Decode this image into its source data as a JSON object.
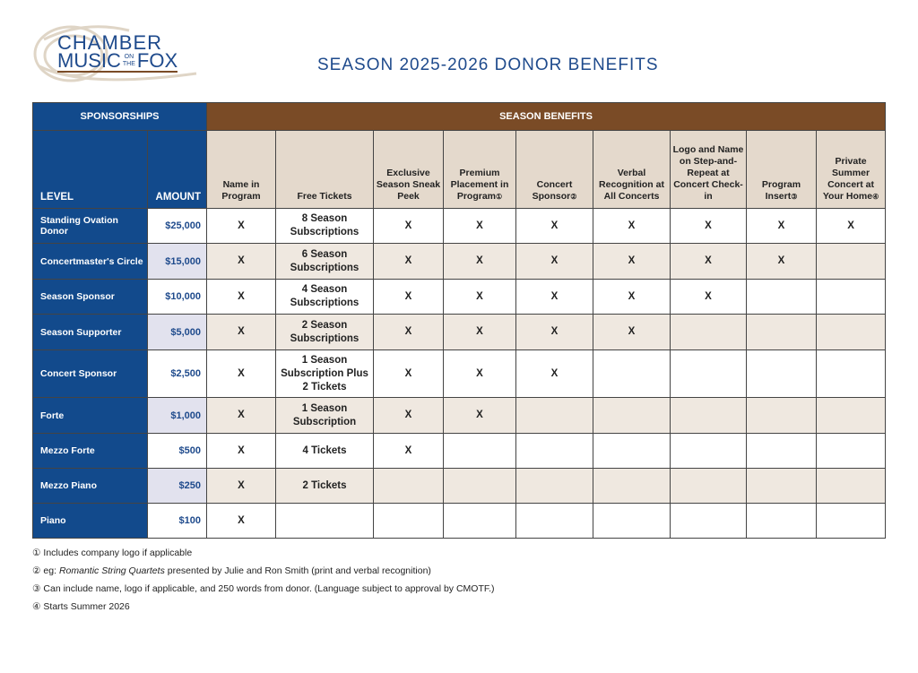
{
  "logo": {
    "line1": "CHAMBER",
    "line2a": "MUSIC",
    "small1": "ON",
    "small2": "THE",
    "line2b": "FOX"
  },
  "title": "SEASON 2025-2026 DONOR BENEFITS",
  "colors": {
    "blue": "#124a8c",
    "brown": "#7a4b26",
    "beige": "#e4d9cc"
  },
  "table": {
    "group_headers": {
      "sponsorships": "SPONSORSHIPS",
      "benefits": "SEASON BENEFITS"
    },
    "level_header": "LEVEL",
    "amount_header": "AMOUNT",
    "benefit_headers": [
      {
        "label": "Name in Program",
        "mark": ""
      },
      {
        "label": "Free Tickets",
        "mark": ""
      },
      {
        "label": "Exclusive Season Sneak Peek",
        "mark": ""
      },
      {
        "label": "Premium Placement in Program",
        "mark": "①"
      },
      {
        "label": "Concert Sponsor",
        "mark": "②"
      },
      {
        "label": "Verbal Recognition at All Concerts",
        "mark": ""
      },
      {
        "label": "Logo and Name on Step-and-Repeat at Concert Check-in",
        "mark": ""
      },
      {
        "label": "Program Insert",
        "mark": "③"
      },
      {
        "label": "Private Summer Concert at Your Home",
        "mark": "④"
      }
    ],
    "rows": [
      {
        "level": "Standing Ovation Donor",
        "amount": "$25,000",
        "cells": [
          "X",
          "8 Season Subscriptions",
          "X",
          "X",
          "X",
          "X",
          "X",
          "X",
          "X"
        ]
      },
      {
        "level": "Concertmaster's Circle",
        "amount": "$15,000",
        "cells": [
          "X",
          "6 Season Subscriptions",
          "X",
          "X",
          "X",
          "X",
          "X",
          "X",
          ""
        ]
      },
      {
        "level": "Season Sponsor",
        "amount": "$10,000",
        "cells": [
          "X",
          "4 Season Subscriptions",
          "X",
          "X",
          "X",
          "X",
          "X",
          "",
          ""
        ]
      },
      {
        "level": "Season Supporter",
        "amount": "$5,000",
        "cells": [
          "X",
          "2 Season Subscriptions",
          "X",
          "X",
          "X",
          "X",
          "",
          "",
          ""
        ]
      },
      {
        "level": "Concert Sponsor",
        "amount": "$2,500",
        "cells": [
          "X",
          "1 Season Subscription Plus 2 Tickets",
          "X",
          "X",
          "X",
          "",
          "",
          "",
          ""
        ]
      },
      {
        "level": "Forte",
        "amount": "$1,000",
        "cells": [
          "X",
          "1 Season Subscription",
          "X",
          "X",
          "",
          "",
          "",
          "",
          ""
        ]
      },
      {
        "level": "Mezzo Forte",
        "amount": "$500",
        "cells": [
          "X",
          "4 Tickets",
          "X",
          "",
          "",
          "",
          "",
          "",
          ""
        ]
      },
      {
        "level": "Mezzo Piano",
        "amount": "$250",
        "cells": [
          "X",
          "2 Tickets",
          "",
          "",
          "",
          "",
          "",
          "",
          ""
        ]
      },
      {
        "level": "Piano",
        "amount": "$100",
        "cells": [
          "X",
          "",
          "",
          "",
          "",
          "",
          "",
          "",
          ""
        ]
      }
    ]
  },
  "footnotes": [
    {
      "mark": "①",
      "italic": "",
      "text": "Includes company logo if applicable"
    },
    {
      "mark": "②",
      "italic": "eg: ",
      "italic_title": "Romantic String Quartets",
      "text": " presented by Julie and Ron Smith (print and verbal recognition)"
    },
    {
      "mark": "③",
      "italic": "",
      "text": "Can include name, logo if applicable, and 250 words from donor. (Language subject to approval by CMOTF.)"
    },
    {
      "mark": "④",
      "italic": "",
      "text": "Starts Summer 2026"
    }
  ]
}
